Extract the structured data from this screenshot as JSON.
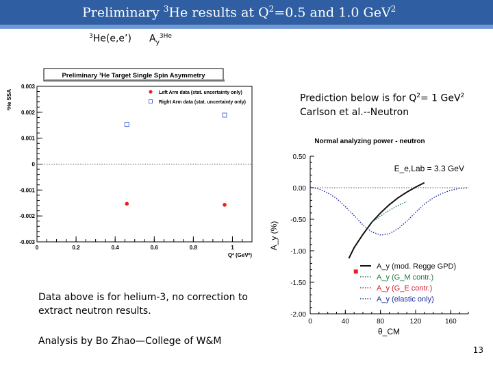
{
  "slide": {
    "title_pre": "Preliminary ",
    "title_he_sup": "3",
    "title_he": "He results at Q",
    "title_q_sup": "2",
    "title_post": "=0.5 and 1.0 GeV",
    "title_gev_sup": "2",
    "left_label_sup": "3",
    "left_label": "He(e,e’)",
    "right_label_a": "A",
    "right_label_sub": "y",
    "right_label_sup": "3He",
    "prediction_line1_pre": "Prediction below is for Q",
    "prediction_line1_sup": "2",
    "prediction_line1_mid": "= 1 GeV",
    "prediction_line1_sup2": "2",
    "prediction_line2": "Carlson et al.--Neutron",
    "note_line1": "Data above is for helium-3, no correction to",
    "note_line2": "extract neutron results.",
    "analysis": "Analysis by Bo Zhao—College of W&M",
    "page_number": "13"
  },
  "chart_data": [
    {
      "type": "scatter",
      "title": "Preliminary ³He Target Single Spin Asymmetry",
      "xlabel": "Q² (GeV²)",
      "ylabel": "³He SSA",
      "xlim": [
        0,
        1.1
      ],
      "ylim": [
        -0.003,
        0.003
      ],
      "x_ticks": [
        "0",
        "0.2",
        "0.4",
        "0.6",
        "0.8",
        "1"
      ],
      "y_ticks": [
        "0.003",
        "0.002",
        "0.001",
        "0",
        "-0.001",
        "-0.002",
        "-0.003"
      ],
      "legend_position": "top-right",
      "zero_line": true,
      "series": [
        {
          "name": "Left Arm data (stat. uncertainty only)",
          "marker": "filled-circle",
          "color": "#e8211e",
          "x": [
            0.46,
            0.96
          ],
          "y": [
            -0.00153,
            -0.00157
          ],
          "err": [
            6e-05,
            6e-05
          ]
        },
        {
          "name": "Right Arm data (stat. uncertainty only)",
          "marker": "open-square",
          "color": "#5a6fd6",
          "x": [
            0.46,
            0.96
          ],
          "y": [
            0.00153,
            0.00189
          ],
          "err": [
            9e-05,
            9e-05
          ]
        }
      ]
    },
    {
      "type": "line",
      "title": "Normal analyzing power - neutron",
      "xlabel": "θ_CM",
      "ylabel": "A_y (%)",
      "annotation": "E_e,Lab = 3.3 GeV",
      "xlim": [
        0,
        180
      ],
      "ylim": [
        -2.0,
        0.5
      ],
      "x_ticks": [
        "0",
        "40",
        "80",
        "120",
        "160"
      ],
      "y_ticks": [
        "0.50",
        "0.00",
        "-0.50",
        "-1.00",
        "-1.50",
        "-2.00"
      ],
      "legend_position": "bottom-right",
      "series": [
        {
          "name": "A_y (mod. Regge GPD)",
          "color": "#111111",
          "style": "solid",
          "x": [
            44,
            50,
            60,
            70,
            80,
            90,
            100,
            110,
            120,
            130
          ],
          "y": [
            -1.12,
            -0.95,
            -0.74,
            -0.55,
            -0.4,
            -0.27,
            -0.16,
            -0.07,
            0.01,
            0.08
          ]
        },
        {
          "name": "A_y (G_M contr.)",
          "color": "#1e7a3a",
          "style": "dotted",
          "x": [
            70,
            80,
            90,
            100,
            110
          ],
          "y": [
            -0.55,
            -0.45,
            -0.36,
            -0.28,
            -0.22
          ]
        },
        {
          "name": "A_y (G_E contr.)",
          "color": "#d11f2f",
          "style": "dotted",
          "x": [],
          "y": []
        },
        {
          "name": "A_y (elastic only)",
          "color": "#1a2a9a",
          "style": "dotted",
          "x": [
            0,
            10,
            20,
            30,
            40,
            50,
            60,
            70,
            80,
            90,
            100,
            110,
            120,
            130,
            140,
            150,
            160,
            170,
            180
          ],
          "y": [
            0.01,
            -0.02,
            -0.08,
            -0.17,
            -0.3,
            -0.44,
            -0.59,
            -0.7,
            -0.75,
            -0.73,
            -0.65,
            -0.53,
            -0.39,
            -0.26,
            -0.16,
            -0.09,
            -0.04,
            -0.01,
            0.0
          ]
        },
        {
          "name": "",
          "color": "#e8211e",
          "style": "marker",
          "x": [
            52
          ],
          "y": [
            -1.33
          ]
        }
      ]
    }
  ]
}
